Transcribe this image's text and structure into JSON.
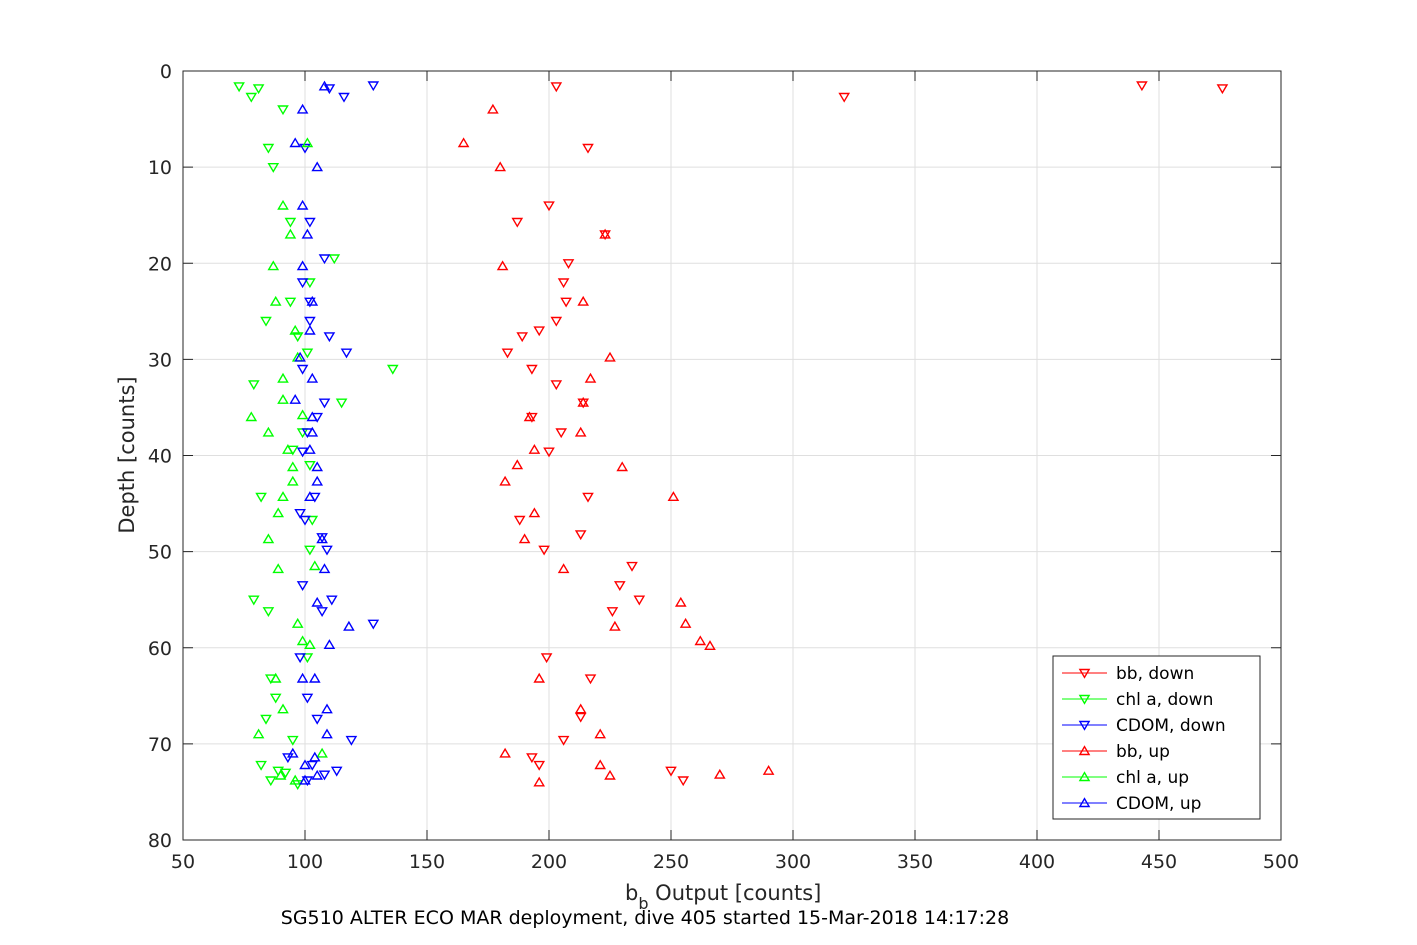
{
  "chart_data": {
    "type": "scatter",
    "xlabel_main": "b",
    "xlabel_sub": "b",
    "xlabel_rest": " Output [counts]",
    "ylabel": "Depth [counts]",
    "caption": "SG510 ALTER ECO MAR deployment, dive 405 started 15-Mar-2018 14:17:28",
    "xlim": [
      50,
      500
    ],
    "ylim": [
      0,
      80
    ],
    "y_reversed": true,
    "grid": true,
    "x_ticks": [
      50,
      100,
      150,
      200,
      250,
      300,
      350,
      400,
      450,
      500
    ],
    "y_ticks": [
      0,
      10,
      20,
      30,
      40,
      50,
      60,
      70,
      80
    ],
    "legend_position": "bottom-right",
    "series": [
      {
        "name": "bb, down",
        "marker": "triangle-down",
        "color": "#ff0000",
        "points": [
          [
            203,
            1.6
          ],
          [
            321,
            2.7
          ],
          [
            443,
            1.5
          ],
          [
            476,
            1.8
          ],
          [
            216,
            8
          ],
          [
            200,
            14
          ],
          [
            187,
            15.7
          ],
          [
            223,
            17
          ],
          [
            208,
            20
          ],
          [
            206,
            22
          ],
          [
            207,
            24
          ],
          [
            203,
            26
          ],
          [
            196,
            27
          ],
          [
            189,
            27.6
          ],
          [
            183,
            29.3
          ],
          [
            193,
            31
          ],
          [
            203,
            32.6
          ],
          [
            214,
            34.5
          ],
          [
            193,
            36
          ],
          [
            205,
            37.6
          ],
          [
            200,
            39.6
          ],
          [
            216,
            44.3
          ],
          [
            188,
            46.7
          ],
          [
            213,
            48.2
          ],
          [
            198,
            49.8
          ],
          [
            234,
            51.5
          ],
          [
            229,
            53.5
          ],
          [
            237,
            55
          ],
          [
            226,
            56.2
          ],
          [
            199,
            61
          ],
          [
            217,
            63.2
          ],
          [
            213,
            67.2
          ],
          [
            206,
            69.6
          ],
          [
            193,
            71.4
          ],
          [
            196,
            72.2
          ],
          [
            250,
            72.8
          ],
          [
            255,
            73.8
          ]
        ]
      },
      {
        "name": "chl a, down",
        "marker": "triangle-down",
        "color": "#00ff00",
        "points": [
          [
            73,
            1.6
          ],
          [
            81,
            1.8
          ],
          [
            78,
            2.7
          ],
          [
            91,
            4
          ],
          [
            85,
            8
          ],
          [
            87,
            10
          ],
          [
            94,
            15.7
          ],
          [
            112,
            19.5
          ],
          [
            102,
            22
          ],
          [
            94,
            24
          ],
          [
            84,
            26
          ],
          [
            97,
            27.6
          ],
          [
            101,
            29.3
          ],
          [
            136,
            31
          ],
          [
            79,
            32.6
          ],
          [
            115,
            34.5
          ],
          [
            99,
            37.6
          ],
          [
            95,
            39.4
          ],
          [
            102,
            41
          ],
          [
            82,
            44.3
          ],
          [
            103,
            46.7
          ],
          [
            102,
            49.8
          ],
          [
            79,
            55
          ],
          [
            85,
            56.2
          ],
          [
            101,
            61
          ],
          [
            86,
            63.2
          ],
          [
            88,
            65.2
          ],
          [
            84,
            67.4
          ],
          [
            95,
            69.6
          ],
          [
            82,
            72.2
          ],
          [
            89,
            72.8
          ],
          [
            92,
            73
          ],
          [
            86,
            73.8
          ],
          [
            97,
            74.2
          ]
        ]
      },
      {
        "name": "CDOM, down",
        "marker": "triangle-down",
        "color": "#0000ff",
        "points": [
          [
            128,
            1.5
          ],
          [
            110,
            1.8
          ],
          [
            116,
            2.7
          ],
          [
            100,
            8
          ],
          [
            102,
            15.7
          ],
          [
            108,
            19.5
          ],
          [
            99,
            22
          ],
          [
            102,
            24
          ],
          [
            102,
            26
          ],
          [
            110,
            27.6
          ],
          [
            117,
            29.3
          ],
          [
            99,
            31
          ],
          [
            108,
            34.5
          ],
          [
            105,
            36
          ],
          [
            101,
            37.6
          ],
          [
            99,
            39.6
          ],
          [
            104,
            44.3
          ],
          [
            98,
            46
          ],
          [
            100,
            46.7
          ],
          [
            107,
            48.5
          ],
          [
            109,
            49.8
          ],
          [
            99,
            53.5
          ],
          [
            111,
            55
          ],
          [
            107,
            56.2
          ],
          [
            128,
            57.5
          ],
          [
            98,
            61
          ],
          [
            101,
            65.2
          ],
          [
            105,
            67.4
          ],
          [
            119,
            69.6
          ],
          [
            93,
            71.4
          ],
          [
            103,
            72.2
          ],
          [
            113,
            72.8
          ],
          [
            108,
            73.2
          ],
          [
            101,
            73.8
          ]
        ]
      },
      {
        "name": "bb, up",
        "marker": "triangle-up",
        "color": "#ff0000",
        "points": [
          [
            177,
            4
          ],
          [
            165,
            7.5
          ],
          [
            180,
            10
          ],
          [
            223,
            17
          ],
          [
            181,
            20.3
          ],
          [
            214,
            24
          ],
          [
            225,
            29.8
          ],
          [
            217,
            32
          ],
          [
            214,
            34.5
          ],
          [
            192,
            36
          ],
          [
            213,
            37.6
          ],
          [
            194,
            39.4
          ],
          [
            230,
            41.2
          ],
          [
            187,
            41
          ],
          [
            182,
            42.7
          ],
          [
            251,
            44.3
          ],
          [
            194,
            46
          ],
          [
            190,
            48.7
          ],
          [
            206,
            51.8
          ],
          [
            254,
            55.3
          ],
          [
            256,
            57.5
          ],
          [
            227,
            57.8
          ],
          [
            262,
            59.3
          ],
          [
            266,
            59.8
          ],
          [
            196,
            63.2
          ],
          [
            213,
            66.4
          ],
          [
            221,
            69
          ],
          [
            182,
            71
          ],
          [
            221,
            72.2
          ],
          [
            225,
            73.3
          ],
          [
            270,
            73.2
          ],
          [
            290,
            72.8
          ],
          [
            196,
            74
          ]
        ]
      },
      {
        "name": "chl a, up",
        "marker": "triangle-up",
        "color": "#00ff00",
        "points": [
          [
            101,
            7.5
          ],
          [
            91,
            14
          ],
          [
            94,
            17
          ],
          [
            87,
            20.3
          ],
          [
            88,
            24
          ],
          [
            96,
            27
          ],
          [
            97,
            29.8
          ],
          [
            91,
            32
          ],
          [
            91,
            34.2
          ],
          [
            99,
            35.8
          ],
          [
            78,
            36
          ],
          [
            85,
            37.6
          ],
          [
            93,
            39.4
          ],
          [
            95,
            41.2
          ],
          [
            95,
            42.7
          ],
          [
            91,
            44.3
          ],
          [
            89,
            46
          ],
          [
            85,
            48.7
          ],
          [
            104,
            51.5
          ],
          [
            89,
            51.8
          ],
          [
            97,
            57.5
          ],
          [
            99,
            59.3
          ],
          [
            102,
            59.7
          ],
          [
            88,
            63.2
          ],
          [
            91,
            66.4
          ],
          [
            81,
            69
          ],
          [
            107,
            71
          ],
          [
            90,
            73.3
          ],
          [
            96,
            73.8
          ]
        ]
      },
      {
        "name": "CDOM, up",
        "marker": "triangle-up",
        "color": "#0000ff",
        "points": [
          [
            108,
            1.6
          ],
          [
            99,
            4
          ],
          [
            96,
            7.5
          ],
          [
            105,
            10
          ],
          [
            99,
            14
          ],
          [
            101,
            17
          ],
          [
            99,
            20.3
          ],
          [
            103,
            24
          ],
          [
            102,
            27
          ],
          [
            98,
            29.8
          ],
          [
            103,
            32
          ],
          [
            96,
            34.2
          ],
          [
            103,
            36
          ],
          [
            103,
            37.6
          ],
          [
            102,
            39.4
          ],
          [
            105,
            41.2
          ],
          [
            105,
            42.7
          ],
          [
            102,
            44.3
          ],
          [
            107,
            48.7
          ],
          [
            108,
            51.8
          ],
          [
            105,
            55.3
          ],
          [
            118,
            57.8
          ],
          [
            110,
            59.7
          ],
          [
            99,
            63.2
          ],
          [
            104,
            63.2
          ],
          [
            109,
            66.4
          ],
          [
            109,
            69
          ],
          [
            95,
            71
          ],
          [
            104,
            71.4
          ],
          [
            100,
            72.2
          ],
          [
            105,
            73.3
          ],
          [
            100,
            73.8
          ]
        ]
      }
    ]
  }
}
